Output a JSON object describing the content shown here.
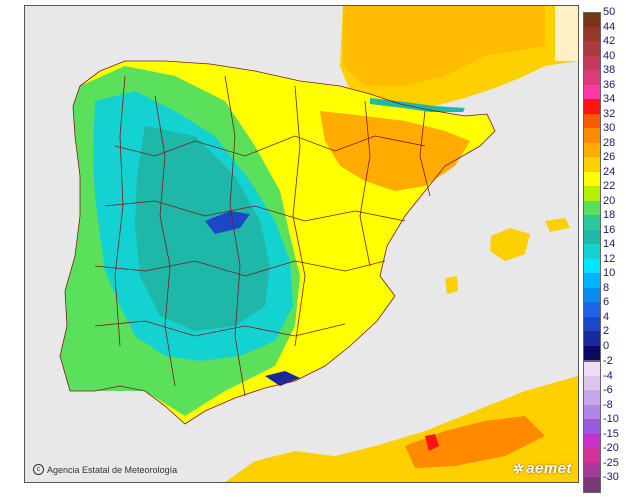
{
  "credit": {
    "icon": "copyright-icon",
    "text": "Agencia Estatal de Meteorología"
  },
  "logo": {
    "icon": "aemet-star-icon",
    "text": "aemet"
  },
  "legend": {
    "positive": [
      {
        "label": "50",
        "color": "#7a3418"
      },
      {
        "label": "44",
        "color": "#963828"
      },
      {
        "label": "42",
        "color": "#ab3a3e"
      },
      {
        "label": "40",
        "color": "#c43a5a"
      },
      {
        "label": "38",
        "color": "#dc3a78"
      },
      {
        "label": "36",
        "color": "#ff39a8"
      },
      {
        "label": "34",
        "color": "#ff1414"
      },
      {
        "label": "32",
        "color": "#ff5a00"
      },
      {
        "label": "30",
        "color": "#ff8a00"
      },
      {
        "label": "28",
        "color": "#ffab00"
      },
      {
        "label": "26",
        "color": "#ffd000"
      },
      {
        "label": "24",
        "color": "#ffff00"
      },
      {
        "label": "22",
        "color": "#b6f000"
      },
      {
        "label": "20",
        "color": "#5be05b"
      },
      {
        "label": "18",
        "color": "#2bc89a"
      },
      {
        "label": "16",
        "color": "#1fb8a8"
      },
      {
        "label": "14",
        "color": "#14d2d2"
      },
      {
        "label": "12",
        "color": "#00e6ff"
      },
      {
        "label": "10",
        "color": "#00b4ff"
      },
      {
        "label": "8",
        "color": "#0a8cf0"
      },
      {
        "label": "6",
        "color": "#1e64e6"
      },
      {
        "label": "4",
        "color": "#1e46c8"
      },
      {
        "label": "2",
        "color": "#1a2a9e"
      },
      {
        "label": "0",
        "color": "#0a0a64"
      }
    ],
    "negative": [
      {
        "label": "-2",
        "color": "#ecdcf4"
      },
      {
        "label": "-4",
        "color": "#dcc4ee"
      },
      {
        "label": "-6",
        "color": "#c8a8ea"
      },
      {
        "label": "-8",
        "color": "#b088e4"
      },
      {
        "label": "-10",
        "color": "#9a5ae0"
      },
      {
        "label": "-15",
        "color": "#c832c8"
      },
      {
        "label": "-20",
        "color": "#d2329a"
      },
      {
        "label": "-25",
        "color": "#a83a9a"
      },
      {
        "label": "-30",
        "color": "#7a3a7a"
      }
    ]
  },
  "map": {
    "background_color": "#e8e8e8",
    "land_color": "#5be05b",
    "border_color": "#7a1a1a"
  }
}
